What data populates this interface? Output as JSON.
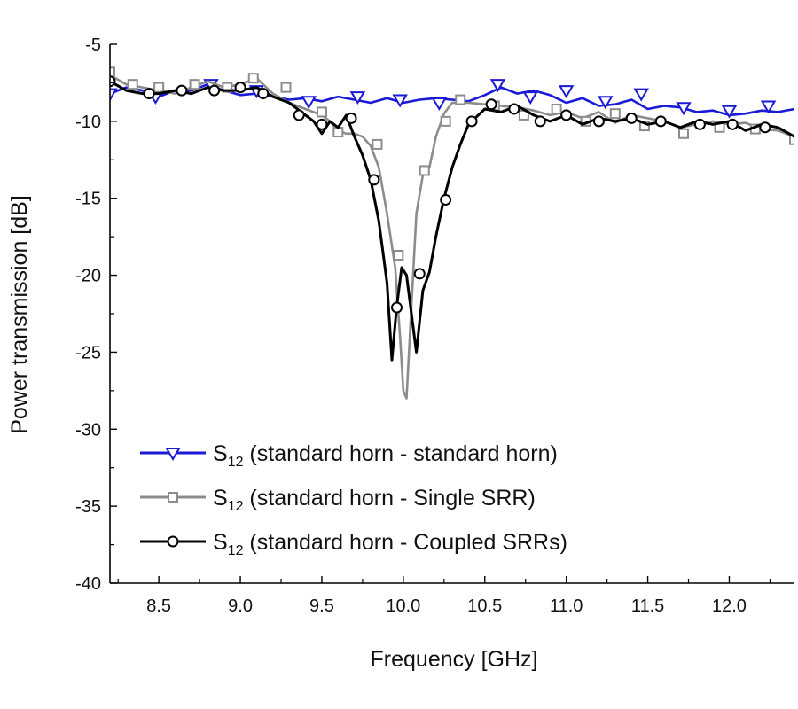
{
  "chart_data": {
    "type": "line",
    "title": "",
    "xlabel": "Frequency [GHz]",
    "ylabel": "Power transmission [dB]",
    "xlim": [
      8.2,
      12.4
    ],
    "ylim": [
      -40,
      -5
    ],
    "x_ticks": [
      8.5,
      9.0,
      9.5,
      10.0,
      10.5,
      11.0,
      11.5,
      12.0
    ],
    "x_tick_labels": [
      "8.5",
      "9.0",
      "9.5",
      "10.0",
      "10.5",
      "11.0",
      "11.5",
      "12.0"
    ],
    "y_ticks": [
      -5,
      -10,
      -15,
      -20,
      -25,
      -30,
      -35,
      -40
    ],
    "y_tick_labels": [
      "-5",
      "-10",
      "-15",
      "-20",
      "-25",
      "-30",
      "-35",
      "-40"
    ],
    "grid": false,
    "legend_position": "bottom-left",
    "series": [
      {
        "name_main": "S",
        "name_sub": "12",
        "name_rest": " (standard horn - standard horn)",
        "color": "#1a1ad6",
        "marker": "triangle-down",
        "x": [
          8.2,
          8.3,
          8.4,
          8.5,
          8.6,
          8.7,
          8.8,
          8.9,
          9.0,
          9.1,
          9.2,
          9.3,
          9.4,
          9.5,
          9.6,
          9.7,
          9.8,
          9.9,
          10.0,
          10.1,
          10.2,
          10.3,
          10.4,
          10.5,
          10.6,
          10.7,
          10.8,
          10.9,
          11.0,
          11.1,
          11.2,
          11.3,
          11.4,
          11.5,
          11.6,
          11.7,
          11.8,
          11.9,
          12.0,
          12.1,
          12.2,
          12.3,
          12.4
        ],
        "y": [
          -8.2,
          -7.8,
          -8.0,
          -8.4,
          -8.0,
          -8.0,
          -7.6,
          -8.0,
          -8.3,
          -8.2,
          -8.4,
          -8.6,
          -8.5,
          -8.7,
          -8.4,
          -8.6,
          -8.8,
          -8.5,
          -8.8,
          -8.6,
          -8.5,
          -8.6,
          -8.7,
          -8.3,
          -7.8,
          -8.2,
          -8.0,
          -8.3,
          -8.8,
          -8.5,
          -9.0,
          -8.9,
          -8.6,
          -9.2,
          -9.0,
          -9.1,
          -9.4,
          -9.3,
          -9.6,
          -9.5,
          -9.3,
          -9.4,
          -9.2
        ],
        "marker_x": [
          8.2,
          8.48,
          8.82,
          9.1,
          9.42,
          9.72,
          9.98,
          10.22,
          10.58,
          10.78,
          11.0,
          11.24,
          11.46,
          11.72,
          12.0,
          12.24
        ],
        "marker_y": [
          -8.2,
          -8.4,
          -7.6,
          -8.0,
          -8.7,
          -8.4,
          -8.6,
          -8.8,
          -7.6,
          -8.4,
          -8.0,
          -8.7,
          -8.2,
          -9.1,
          -9.3,
          -9.0
        ]
      },
      {
        "name_main": "S",
        "name_sub": "12",
        "name_rest": " (standard horn - Single SRR)",
        "color": "#8c8c8c",
        "marker": "square",
        "x": [
          8.2,
          8.3,
          8.4,
          8.5,
          8.6,
          8.7,
          8.8,
          8.9,
          9.0,
          9.1,
          9.2,
          9.3,
          9.4,
          9.5,
          9.55,
          9.6,
          9.65,
          9.7,
          9.75,
          9.8,
          9.85,
          9.9,
          9.95,
          9.98,
          10.0,
          10.02,
          10.05,
          10.08,
          10.12,
          10.16,
          10.2,
          10.25,
          10.3,
          10.4,
          10.5,
          10.6,
          10.7,
          10.8,
          10.9,
          11.0,
          11.1,
          11.2,
          11.3,
          11.4,
          11.5,
          11.6,
          11.7,
          11.8,
          11.9,
          12.0,
          12.1,
          12.2,
          12.3,
          12.4
        ],
        "y": [
          -7.0,
          -7.6,
          -7.8,
          -8.0,
          -8.2,
          -7.8,
          -7.4,
          -7.8,
          -7.6,
          -7.2,
          -8.2,
          -8.8,
          -9.2,
          -9.6,
          -10.0,
          -10.6,
          -10.8,
          -10.8,
          -11.0,
          -11.6,
          -13.0,
          -16.0,
          -19.5,
          -24.0,
          -27.5,
          -28.0,
          -22.0,
          -16.0,
          -13.5,
          -13.0,
          -11.0,
          -9.5,
          -8.8,
          -8.8,
          -8.9,
          -9.0,
          -9.1,
          -9.3,
          -9.6,
          -9.4,
          -9.8,
          -9.4,
          -10.1,
          -9.6,
          -9.8,
          -10.0,
          -10.4,
          -10.2,
          -10.0,
          -10.2,
          -10.1,
          -10.5,
          -10.6,
          -11.0
        ],
        "marker_x": [
          8.2,
          8.34,
          8.5,
          8.72,
          8.92,
          9.08,
          9.28,
          9.5,
          9.6,
          9.84,
          9.97,
          10.13,
          10.26,
          10.35,
          10.56,
          10.74,
          10.94,
          11.12,
          11.3,
          11.48,
          11.72,
          11.94,
          12.16,
          12.4
        ],
        "marker_y": [
          -6.8,
          -7.6,
          -7.8,
          -7.6,
          -7.8,
          -7.2,
          -7.8,
          -9.4,
          -10.7,
          -11.5,
          -18.7,
          -13.2,
          -10.0,
          -8.6,
          -9.0,
          -9.6,
          -9.2,
          -10.0,
          -9.5,
          -10.3,
          -10.8,
          -10.4,
          -10.5,
          -11.2
        ]
      },
      {
        "name_main": "S",
        "name_sub": "12",
        "name_rest": " (standard horn - Coupled SRRs)",
        "color": "#000000",
        "marker": "circle",
        "x": [
          8.2,
          8.3,
          8.4,
          8.5,
          8.6,
          8.7,
          8.8,
          8.9,
          9.0,
          9.1,
          9.2,
          9.3,
          9.4,
          9.45,
          9.5,
          9.55,
          9.6,
          9.65,
          9.7,
          9.75,
          9.8,
          9.85,
          9.9,
          9.93,
          9.96,
          9.99,
          10.02,
          10.05,
          10.08,
          10.12,
          10.16,
          10.2,
          10.25,
          10.3,
          10.35,
          10.4,
          10.5,
          10.6,
          10.7,
          10.8,
          10.9,
          11.0,
          11.1,
          11.2,
          11.3,
          11.4,
          11.5,
          11.6,
          11.7,
          11.8,
          11.9,
          12.0,
          12.1,
          12.2,
          12.3,
          12.4
        ],
        "y": [
          -7.4,
          -8.0,
          -8.2,
          -8.2,
          -8.0,
          -8.2,
          -7.8,
          -8.0,
          -8.0,
          -7.8,
          -8.4,
          -8.8,
          -9.6,
          -10.0,
          -10.8,
          -10.0,
          -10.4,
          -9.6,
          -11.0,
          -12.2,
          -13.8,
          -16.5,
          -20.5,
          -25.5,
          -22.0,
          -19.5,
          -20.0,
          -22.5,
          -25.0,
          -21.0,
          -19.8,
          -17.5,
          -15.0,
          -13.0,
          -11.5,
          -10.2,
          -9.2,
          -9.4,
          -9.0,
          -9.6,
          -10.0,
          -9.6,
          -10.2,
          -9.8,
          -10.0,
          -9.8,
          -10.2,
          -10.0,
          -10.4,
          -10.0,
          -10.2,
          -10.0,
          -10.6,
          -10.2,
          -10.4,
          -11.0
        ],
        "marker_x": [
          8.2,
          8.44,
          8.64,
          8.84,
          9.0,
          9.14,
          9.36,
          9.5,
          9.68,
          9.82,
          9.96,
          10.1,
          10.26,
          10.42,
          10.54,
          10.68,
          10.84,
          11.0,
          11.2,
          11.4,
          11.58,
          11.82,
          12.02,
          12.22
        ],
        "marker_y": [
          -7.4,
          -8.2,
          -8.0,
          -8.0,
          -7.8,
          -8.2,
          -9.6,
          -10.2,
          -9.8,
          -13.8,
          -22.1,
          -19.9,
          -15.1,
          -10.0,
          -8.9,
          -9.2,
          -10.0,
          -9.6,
          -10.0,
          -9.8,
          -10.0,
          -10.2,
          -10.2,
          -10.4
        ]
      }
    ]
  }
}
